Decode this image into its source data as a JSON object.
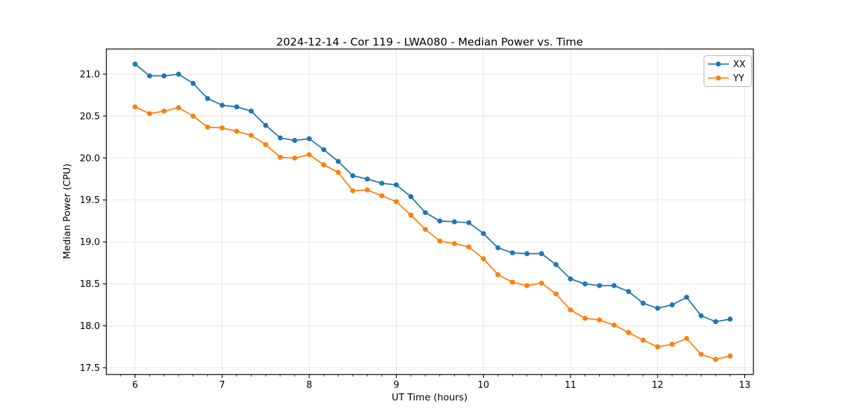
{
  "chart_data": {
    "type": "line",
    "title": "2024-12-14 - Cor 119 - LWA080 - Median Power vs. Time",
    "xlabel": "UT Time (hours)",
    "ylabel": "Median Power (CPU)",
    "xlim": [
      5.67,
      13.1
    ],
    "ylim": [
      17.42,
      21.3
    ],
    "xticks": [
      6,
      7,
      8,
      9,
      10,
      11,
      12,
      13
    ],
    "yticks": [
      17.5,
      18.0,
      18.5,
      19.0,
      19.5,
      20.0,
      20.5,
      21.0
    ],
    "x_minor_tick_step_hours": 0.1667,
    "grid": true,
    "legend_position": "upper right",
    "x": [
      6.0,
      6.167,
      6.333,
      6.5,
      6.667,
      6.833,
      7.0,
      7.167,
      7.333,
      7.5,
      7.667,
      7.833,
      8.0,
      8.167,
      8.333,
      8.5,
      8.667,
      8.833,
      9.0,
      9.167,
      9.333,
      9.5,
      9.667,
      9.833,
      10.0,
      10.167,
      10.333,
      10.5,
      10.667,
      10.833,
      11.0,
      11.167,
      11.333,
      11.5,
      11.667,
      11.833,
      12.0,
      12.167,
      12.333,
      12.5,
      12.667,
      12.833
    ],
    "series": [
      {
        "name": "XX",
        "color": "#1f77b4",
        "values": [
          21.12,
          20.98,
          20.98,
          21.0,
          20.89,
          20.71,
          20.63,
          20.61,
          20.56,
          20.39,
          20.24,
          20.21,
          20.23,
          20.1,
          19.96,
          19.79,
          19.75,
          19.7,
          19.68,
          19.54,
          19.35,
          19.25,
          19.24,
          19.23,
          19.1,
          18.93,
          18.87,
          18.86,
          18.86,
          18.73,
          18.56,
          18.5,
          18.48,
          18.48,
          18.41,
          18.27,
          18.21,
          18.25,
          18.34,
          18.12,
          18.05,
          18.08
        ]
      },
      {
        "name": "YY",
        "color": "#ff7f0e",
        "values": [
          20.61,
          20.53,
          20.56,
          20.6,
          20.5,
          20.37,
          20.36,
          20.32,
          20.27,
          20.16,
          20.01,
          20.0,
          20.04,
          19.92,
          19.83,
          19.61,
          19.62,
          19.55,
          19.48,
          19.32,
          19.15,
          19.01,
          18.98,
          18.94,
          18.8,
          18.61,
          18.52,
          18.48,
          18.51,
          18.38,
          18.19,
          18.09,
          18.07,
          18.01,
          17.92,
          17.83,
          17.75,
          17.78,
          17.85,
          17.66,
          17.6,
          17.64
        ]
      }
    ],
    "colors": {
      "grid": "#e3e3e3",
      "spine": "#000000",
      "legend_border": "#b3b3b3",
      "background": "#ffffff"
    }
  }
}
